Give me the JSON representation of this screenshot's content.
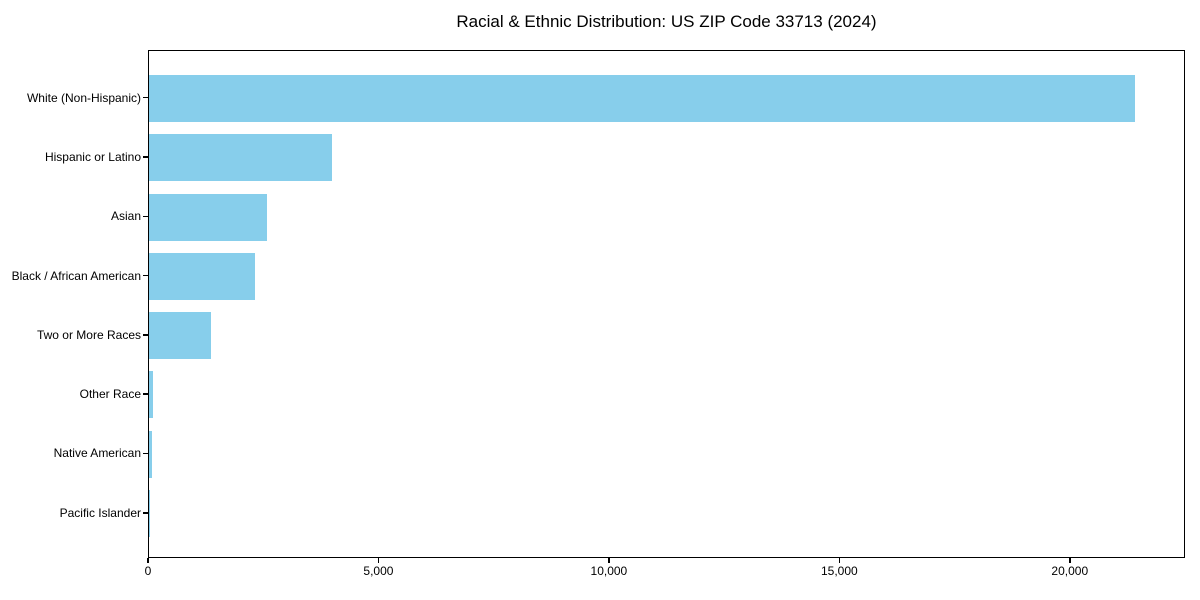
{
  "chart_data": {
    "type": "bar",
    "orientation": "horizontal",
    "title": "Racial & Ethnic Distribution: US ZIP Code 33713 (2024)",
    "categories": [
      "White (Non-Hispanic)",
      "Hispanic or Latino",
      "Asian",
      "Black / African American",
      "Two or More Races",
      "Other Race",
      "Native American",
      "Pacific Islander"
    ],
    "values": [
      21430,
      3970,
      2560,
      2300,
      1340,
      85,
      60,
      10
    ],
    "xlabel": "",
    "ylabel": "",
    "xlim": [
      0,
      22500
    ],
    "x_ticks": [
      0,
      5000,
      10000,
      15000,
      20000
    ],
    "x_tick_labels": [
      "0",
      "5,000",
      "10,000",
      "15,000",
      "20,000"
    ],
    "bar_color": "#87CEEB",
    "text_color": "#000000",
    "grid": false,
    "legend": "none"
  }
}
